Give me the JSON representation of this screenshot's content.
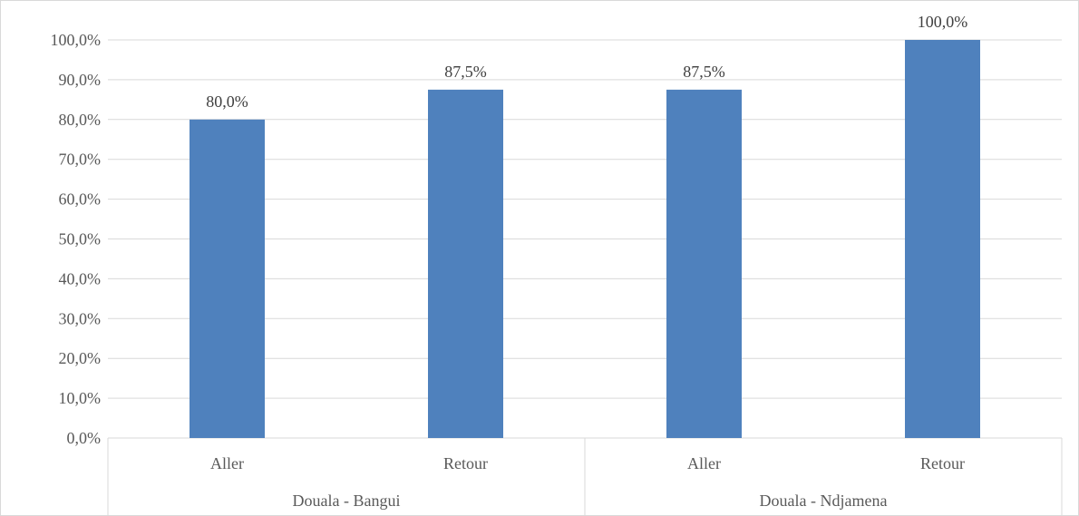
{
  "chart_data": {
    "type": "bar",
    "title": "",
    "xlabel": "",
    "ylabel": "",
    "ylim": [
      0,
      100
    ],
    "y_ticks": [
      "0,0%",
      "10,0%",
      "20,0%",
      "30,0%",
      "40,0%",
      "50,0%",
      "60,0%",
      "70,0%",
      "80,0%",
      "90,0%",
      "100,0%"
    ],
    "grid": true,
    "legend": "none",
    "bar_color": "#4f81bd",
    "groups": [
      {
        "label": "Douala - Bangui",
        "categories": [
          "Aller",
          "Retour"
        ]
      },
      {
        "label": "Douala - Ndjamena",
        "categories": [
          "Aller",
          "Retour"
        ]
      }
    ],
    "categories": [
      "Aller",
      "Retour",
      "Aller",
      "Retour"
    ],
    "values": [
      80.0,
      87.5,
      87.5,
      100.0
    ],
    "value_labels": [
      "80,0%",
      "87,5%",
      "87,5%",
      "100,0%"
    ]
  }
}
